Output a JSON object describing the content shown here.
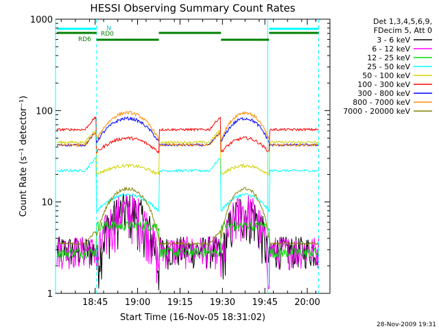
{
  "chart_data": {
    "type": "line",
    "title": "HESSI Observing Summary Count Rates",
    "ylabel": "Count Rate (s⁻¹ detector⁻¹)",
    "xlabel": "Start Time (16-Nov-05 18:31:02)",
    "y_scale": "log",
    "ylim": [
      1,
      1000
    ],
    "y_ticks": [
      {
        "value": 1,
        "label": "1"
      },
      {
        "value": 10,
        "label": "10"
      },
      {
        "value": 100,
        "label": "100"
      },
      {
        "value": 1000,
        "label": "1000"
      }
    ],
    "xlim_minutes": [
      0,
      97
    ],
    "x_ticks": [
      {
        "t": 14,
        "label": "18:45"
      },
      {
        "t": 29,
        "label": "19:00"
      },
      {
        "t": 44,
        "label": "19:15"
      },
      {
        "t": 59,
        "label": "19:30"
      },
      {
        "t": 74,
        "label": "19:45"
      },
      {
        "t": 89,
        "label": "20:00"
      }
    ],
    "legend_title": [
      "Det 1,3,4,5,6,9,",
      "FDecim 5, Att 0"
    ],
    "series": [
      {
        "name": "3 - 6 keV",
        "color": "#000000",
        "shape": "low_noise",
        "level": 3,
        "night": 1
      },
      {
        "name": "6 - 12 keV",
        "color": "#ff00ff",
        "shape": "low_noise",
        "level": 3,
        "night": 2
      },
      {
        "name": "12 - 25 keV",
        "color": "#00e000",
        "shape": "step",
        "day_low": 2.8,
        "day_high": 5.5
      },
      {
        "name": "25 - 50 keV",
        "color": "#00ffff",
        "shape": "orbit",
        "night": 22,
        "day_peak": 12,
        "day_edge": 8
      },
      {
        "name": "50 - 100 keV",
        "color": "#d0d000",
        "shape": "orbit",
        "night": 45,
        "day_peak": 25,
        "day_edge": 20
      },
      {
        "name": "100 - 300 keV",
        "color": "#ff0000",
        "shape": "orbit_inverse",
        "night": 62,
        "day_peak": 50,
        "day_edge": 35
      },
      {
        "name": "300 - 800 keV",
        "color": "#0000ff",
        "shape": "orbit",
        "night": 42,
        "day_peak": 82,
        "day_edge": 45
      },
      {
        "name": "800 - 7000 keV",
        "color": "#ff8c00",
        "shape": "orbit",
        "night": 42,
        "day_peak": 95,
        "day_edge": 48
      },
      {
        "name": "7000 - 20000 keV",
        "color": "#808000",
        "shape": "orbit",
        "night": 3.5,
        "day_peak": 14,
        "day_edge": 4
      }
    ],
    "day_intervals_minutes": [
      [
        14.5,
        36.5
      ],
      [
        58.5,
        75.5
      ]
    ],
    "saa_markers_minutes": [
      0,
      14.5,
      75,
      93
    ],
    "attenuator_labels": {
      "n": "N",
      "rd0": "RD0",
      "rd6": "RD6"
    },
    "n_bar_color": "#00ffff",
    "rd_bar_color": "#008000",
    "timestamp": "28-Nov-2009 19:31"
  }
}
